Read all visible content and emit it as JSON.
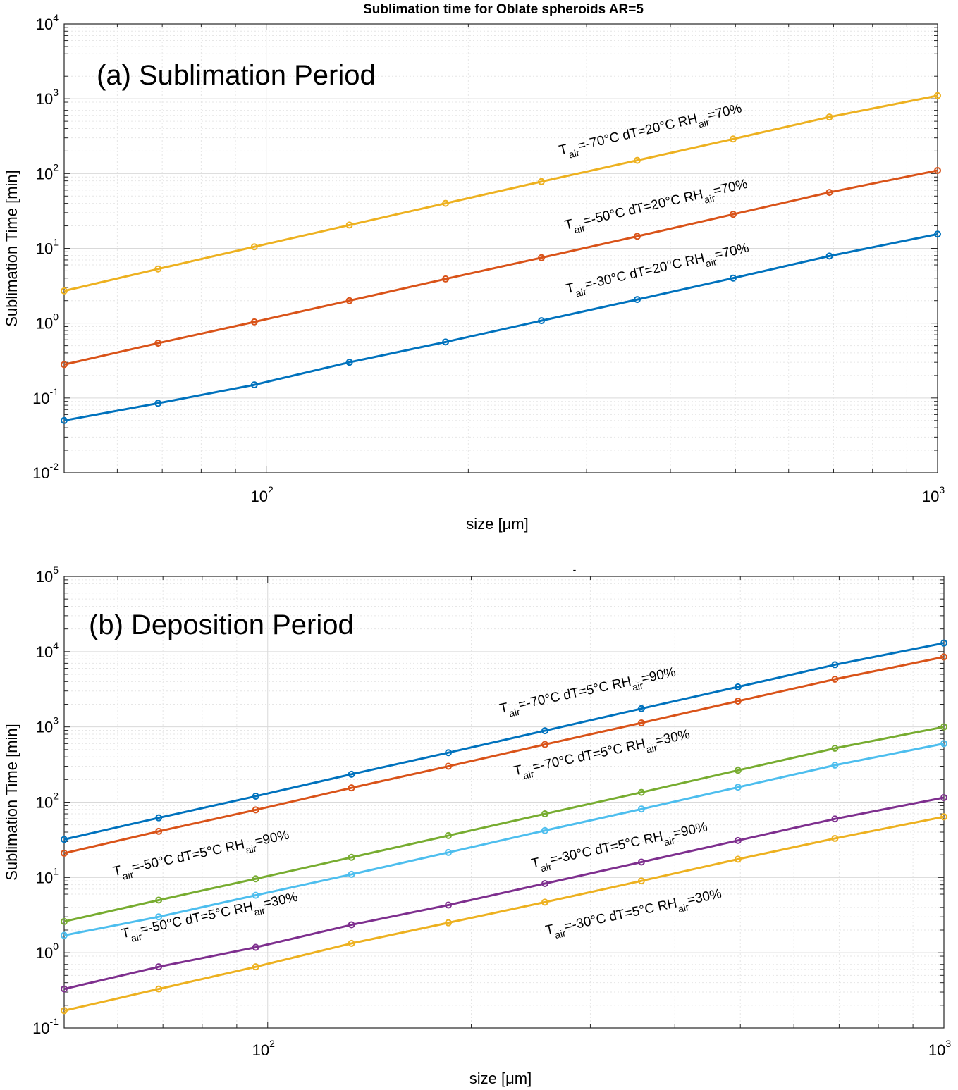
{
  "figure_title": "Sublimation time for Oblate spheroids  AR=5",
  "stray_mark": "-",
  "chart_data": [
    {
      "type": "line",
      "panel_label": "(a) Sublimation Period",
      "xlabel": "size [μm]",
      "ylabel": "Sublimation Time [min]",
      "xscale": "log",
      "yscale": "log",
      "xlim": [
        50,
        1000
      ],
      "ylim": [
        0.01,
        10000
      ],
      "grid": true,
      "xticks": [
        {
          "base": "10",
          "exp": "2",
          "value": 100
        },
        {
          "base": "10",
          "exp": "3",
          "value": 1000
        }
      ],
      "yticks": [
        {
          "base": "10",
          "exp": "-2",
          "value": 0.01
        },
        {
          "base": "10",
          "exp": "-1",
          "value": 0.1
        },
        {
          "base": "10",
          "exp": "0",
          "value": 1
        },
        {
          "base": "10",
          "exp": "1",
          "value": 10
        },
        {
          "base": "10",
          "exp": "2",
          "value": 100
        },
        {
          "base": "10",
          "exp": "3",
          "value": 1000
        },
        {
          "base": "10",
          "exp": "4",
          "value": 10000
        }
      ],
      "x": [
        50,
        69,
        96,
        133,
        185,
        257,
        357,
        496,
        690,
        1000
      ],
      "series": [
        {
          "color": "#0072BD",
          "marker": "o",
          "values": [
            0.05,
            0.085,
            0.15,
            0.3,
            0.56,
            1.08,
            2.07,
            4.0,
            7.9,
            15.5
          ]
        },
        {
          "color": "#D95319",
          "marker": "o",
          "values": [
            0.28,
            0.54,
            1.04,
            2.0,
            3.9,
            7.5,
            14.5,
            28.5,
            56,
            110
          ]
        },
        {
          "color": "#EDB120",
          "marker": "o",
          "values": [
            2.7,
            5.3,
            10.5,
            20.5,
            40,
            78,
            150,
            290,
            570,
            1100
          ]
        }
      ],
      "annotations": [
        {
          "series": 2,
          "t": "T",
          "sub": "air",
          "mid": "=-70°C  dT=20°C  RH",
          "sub2": "air",
          "end": "=70%"
        },
        {
          "series": 1,
          "t": "T",
          "sub": "air",
          "mid": "=-50°C  dT=20°C  RH",
          "sub2": "air",
          "end": "=70%"
        },
        {
          "series": 0,
          "t": "T",
          "sub": "air",
          "mid": "=-30°C  dT=20°C  RH",
          "sub2": "air",
          "end": "=70%"
        }
      ]
    },
    {
      "type": "line",
      "panel_label": "(b) Deposition Period",
      "xlabel": "size [μm]",
      "ylabel": "Sublimation Time [min]",
      "xscale": "log",
      "yscale": "log",
      "xlim": [
        50,
        1000
      ],
      "ylim": [
        0.1,
        100000
      ],
      "grid": true,
      "xticks": [
        {
          "base": "10",
          "exp": "2",
          "value": 100
        },
        {
          "base": "10",
          "exp": "3",
          "value": 1000
        }
      ],
      "yticks": [
        {
          "base": "10",
          "exp": "-1",
          "value": 0.1
        },
        {
          "base": "10",
          "exp": "0",
          "value": 1
        },
        {
          "base": "10",
          "exp": "1",
          "value": 10
        },
        {
          "base": "10",
          "exp": "2",
          "value": 100
        },
        {
          "base": "10",
          "exp": "3",
          "value": 1000
        },
        {
          "base": "10",
          "exp": "4",
          "value": 10000
        },
        {
          "base": "10",
          "exp": "5",
          "value": 100000
        }
      ],
      "x": [
        50,
        69,
        96,
        133,
        185,
        257,
        357,
        496,
        690,
        1000
      ],
      "series": [
        {
          "color": "#0072BD",
          "marker": "o",
          "values": [
            32,
            62,
            120,
            235,
            455,
            890,
            1750,
            3400,
            6700,
            13000
          ]
        },
        {
          "color": "#D95319",
          "marker": "o",
          "values": [
            21,
            41,
            79,
            155,
            300,
            585,
            1130,
            2200,
            4300,
            8500
          ]
        },
        {
          "color": "#77AC30",
          "marker": "o",
          "values": [
            2.6,
            5.0,
            9.6,
            18.5,
            36,
            70,
            135,
            265,
            520,
            1000
          ]
        },
        {
          "color": "#4DBEEE",
          "marker": "o",
          "values": [
            1.7,
            3.0,
            5.8,
            11,
            21.5,
            42,
            81,
            158,
            310,
            600
          ]
        },
        {
          "color": "#7E2F8E",
          "marker": "o",
          "values": [
            0.33,
            0.65,
            1.18,
            2.35,
            4.3,
            8.3,
            16,
            31,
            60,
            115
          ]
        },
        {
          "color": "#EDB120",
          "marker": "o",
          "values": [
            0.17,
            0.33,
            0.65,
            1.33,
            2.5,
            4.7,
            9.0,
            17.5,
            33,
            64
          ]
        }
      ],
      "annotations": [
        {
          "series": 0,
          "t": "T",
          "sub": "air",
          "mid": "=-70°C  dT=5°C  RH",
          "sub2": "air",
          "end": "=90%"
        },
        {
          "series": 1,
          "t": "T",
          "sub": "air",
          "mid": "=-70°C  dT=5°C  RH",
          "sub2": "air",
          "end": "=30%"
        },
        {
          "series": 2,
          "t": "T",
          "sub": "air",
          "mid": "=-50°C  dT=5°C  RH",
          "sub2": "air",
          "end": "=90%"
        },
        {
          "series": 3,
          "t": "T",
          "sub": "air",
          "mid": "=-50°C  dT=5°C  RH",
          "sub2": "air",
          "end": "=30%"
        },
        {
          "series": 4,
          "t": "T",
          "sub": "air",
          "mid": "=-30°C  dT=5°C  RH",
          "sub2": "air",
          "end": "=90%"
        },
        {
          "series": 5,
          "t": "T",
          "sub": "air",
          "mid": "=-30°C  dT=5°C  RH",
          "sub2": "air",
          "end": "=30%"
        }
      ]
    }
  ]
}
